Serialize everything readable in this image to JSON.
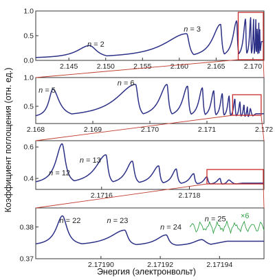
{
  "labels": {
    "ylabel": "Коэффициент поглощения (отн. ед.)",
    "xlabel": "Энергия (электронвольт)",
    "multiplier": "×6"
  },
  "colors": {
    "series": "#2b2f86",
    "scaled_series": "#2ea043",
    "zoom_box": "#cc2b2b"
  },
  "chart_data": [
    {
      "type": "line",
      "xlim": [
        2.1405,
        2.1715
      ],
      "ylim": [
        0.0,
        1.0
      ],
      "xticks": [
        2.145,
        2.15,
        2.155,
        2.16,
        2.165,
        2.17
      ],
      "xtick_labels": [
        "2.145",
        "2.150",
        "2.155",
        "2.160",
        "2.165",
        "2.170"
      ],
      "yticks": [
        0.0,
        0.5,
        1.0
      ],
      "ytick_labels": [
        "0.0",
        "0.5",
        "1.0"
      ],
      "peak_labels": [
        {
          "n": "2",
          "x": 2.1475,
          "y": 0.28
        },
        {
          "n": "3",
          "x": 2.1606,
          "y": 0.58
        }
      ],
      "series": [
        {
          "peaks": [
            {
              "x": 2.1478,
              "y": 0.3
            },
            {
              "x": 2.161,
              "y": 0.54
            },
            {
              "x": 2.1656,
              "y": 0.73
            },
            {
              "x": 2.1678,
              "y": 0.8
            },
            {
              "x": 2.169,
              "y": 0.84
            },
            {
              "x": 2.1697,
              "y": 0.87
            },
            {
              "x": 2.1701,
              "y": 0.85
            },
            {
              "x": 2.1704,
              "y": 0.83
            },
            {
              "x": 2.1706,
              "y": 0.8
            },
            {
              "x": 2.1708,
              "y": 0.77
            },
            {
              "x": 2.1709,
              "y": 0.74
            }
          ],
          "baseline": 0.04,
          "end_value": 0.38
        }
      ],
      "zoom_region": {
        "x0": 2.168,
        "x1": 2.1719
      }
    },
    {
      "type": "line",
      "xlim": [
        2.168,
        2.172
      ],
      "ylim": [
        0.2,
        1.0
      ],
      "xticks": [
        2.168,
        2.169,
        2.17,
        2.171,
        2.172
      ],
      "xtick_labels": [
        "2.168",
        "2.169",
        "2.170",
        "2.171",
        "2.172"
      ],
      "yticks": [
        0.5,
        1.0
      ],
      "ytick_labels": [
        "0.5",
        "1.0"
      ],
      "peak_labels": [
        {
          "n": "5",
          "x": 2.16805,
          "y": 0.74
        },
        {
          "n": "6",
          "x": 2.16943,
          "y": 0.86
        }
      ],
      "series": [
        {
          "peaks": [
            {
              "x": 2.1683,
              "y": 0.8
            },
            {
              "x": 2.16975,
              "y": 0.88
            },
            {
              "x": 2.1703,
              "y": 0.88
            },
            {
              "x": 2.17066,
              "y": 0.85
            },
            {
              "x": 2.17092,
              "y": 0.82
            },
            {
              "x": 2.17112,
              "y": 0.77
            },
            {
              "x": 2.17127,
              "y": 0.72
            },
            {
              "x": 2.17139,
              "y": 0.68
            },
            {
              "x": 2.17149,
              "y": 0.63
            },
            {
              "x": 2.17158,
              "y": 0.58
            },
            {
              "x": 2.17165,
              "y": 0.53
            },
            {
              "x": 2.17171,
              "y": 0.49
            },
            {
              "x": 2.17176,
              "y": 0.46
            }
          ],
          "baseline": 0.3,
          "end_value": 0.37
        }
      ],
      "zoom_region": {
        "x0": 2.17145,
        "x1": 2.17195
      }
    },
    {
      "type": "line",
      "xlim": [
        2.17145,
        2.17197
      ],
      "ylim": [
        0.33,
        0.64
      ],
      "xticks": [
        2.1716,
        2.1718
      ],
      "xtick_labels": [
        "2.1716",
        "2.1718"
      ],
      "yticks": [
        0.4,
        0.6
      ],
      "ytick_labels": [
        "0.4",
        "0.6"
      ],
      "peak_labels": [
        {
          "n": "12",
          "x": 2.17148,
          "y": 0.42
        },
        {
          "n": "13",
          "x": 2.17155,
          "y": 0.5
        }
      ],
      "series": [
        {
          "peaks": [
            {
              "x": 2.17151,
              "y": 0.62
            },
            {
              "x": 2.17161,
              "y": 0.55
            },
            {
              "x": 2.17167,
              "y": 0.51
            },
            {
              "x": 2.17173,
              "y": 0.48
            },
            {
              "x": 2.17177,
              "y": 0.46
            },
            {
              "x": 2.17181,
              "y": 0.43
            },
            {
              "x": 2.17184,
              "y": 0.41
            },
            {
              "x": 2.17187,
              "y": 0.4
            },
            {
              "x": 2.17189,
              "y": 0.39
            }
          ],
          "baseline": 0.36,
          "end_value": 0.37
        }
      ],
      "zoom_region": {
        "x0": 2.17184,
        "x1": 2.17197
      }
    },
    {
      "type": "line",
      "xlim": [
        2.171878,
        2.171955
      ],
      "ylim": [
        0.37,
        0.386
      ],
      "xticks": [
        2.1719,
        2.17192,
        2.17194
      ],
      "xtick_labels": [
        "2.17190",
        "2.17192",
        "2.17194"
      ],
      "yticks": [
        0.37,
        0.38
      ],
      "ytick_labels": [
        "0.37",
        "0.38"
      ],
      "peak_labels": [
        {
          "n": "22",
          "x": 2.171886,
          "y": 0.3812
        },
        {
          "n": "23",
          "x": 2.171902,
          "y": 0.3812
        },
        {
          "n": "24",
          "x": 2.17192,
          "y": 0.3792
        },
        {
          "n": "25",
          "x": 2.171935,
          "y": 0.3818
        }
      ],
      "series": [
        {
          "peaks": [
            {
              "x": 2.171887,
              "y": 0.3835
            },
            {
              "x": 2.171908,
              "y": 0.379
            },
            {
              "x": 2.171922,
              "y": 0.3775
            },
            {
              "x": 2.171934,
              "y": 0.376
            }
          ],
          "baseline": 0.374,
          "end_value": 0.3755
        },
        {
          "name": "×6",
          "x_start": 2.17193,
          "x_end": 2.171955,
          "level": 0.38,
          "amplitude": 0.002
        }
      ]
    }
  ]
}
